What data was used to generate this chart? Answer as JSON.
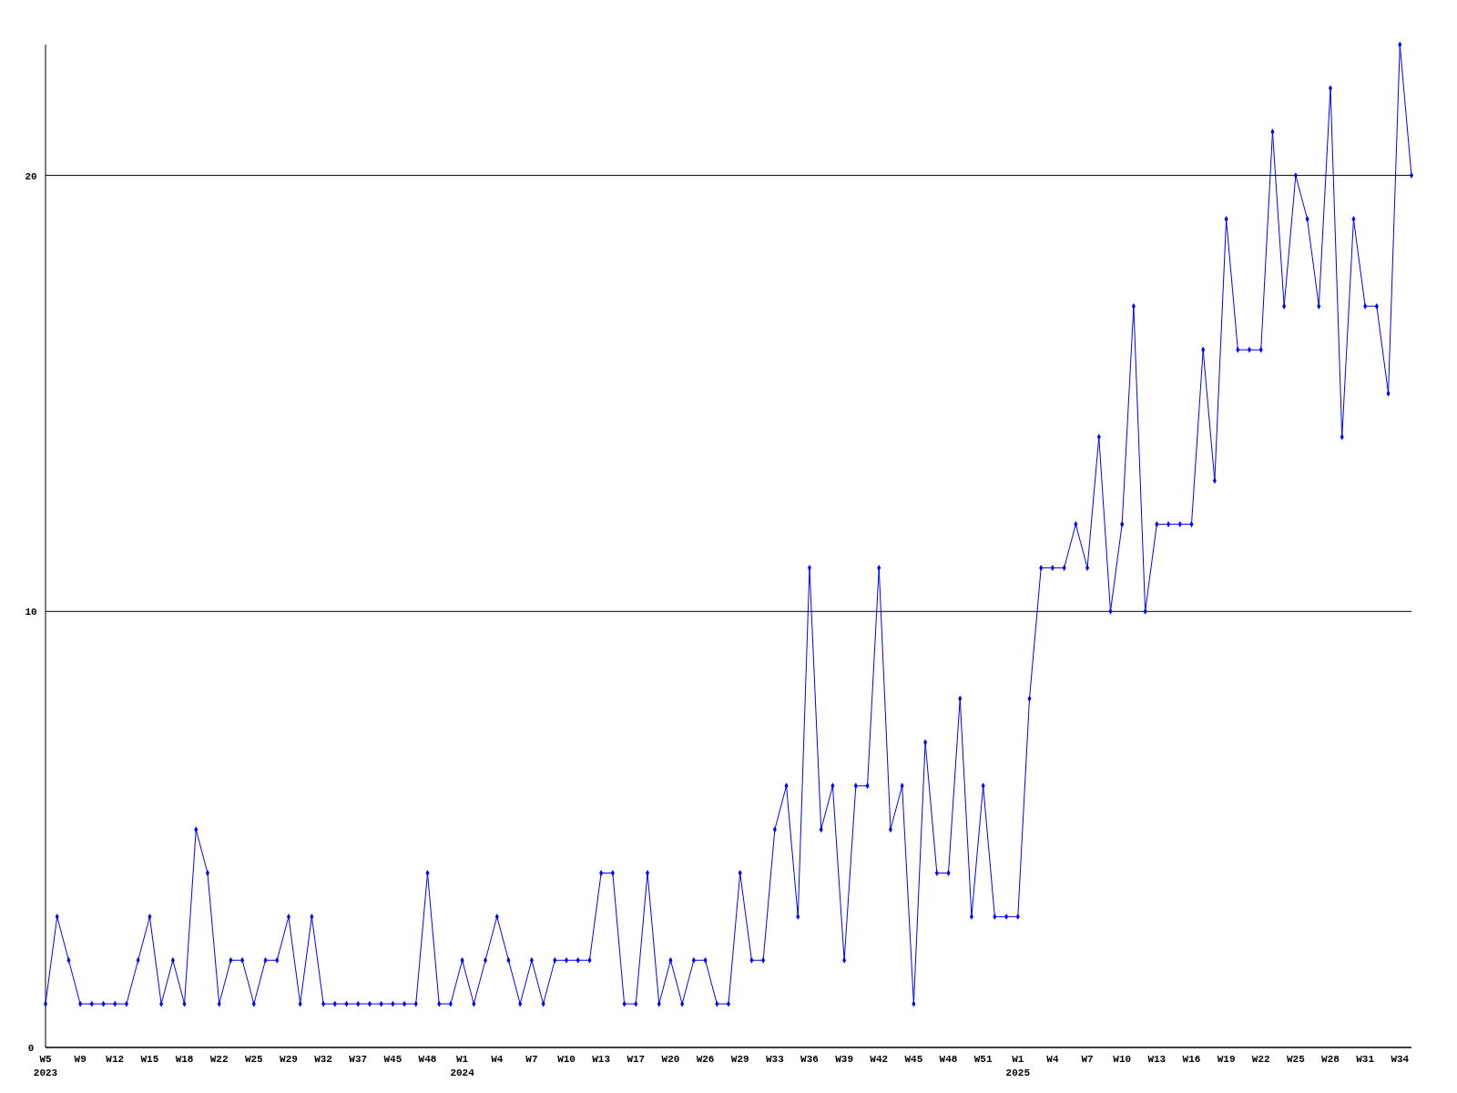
{
  "chart_data": {
    "type": "line",
    "categories": [
      "W5\n2023",
      null,
      null,
      "W9",
      null,
      null,
      "W12",
      null,
      null,
      "W15",
      null,
      null,
      "W18",
      null,
      null,
      "W22",
      null,
      null,
      "W25",
      null,
      null,
      "W29",
      null,
      null,
      "W32",
      null,
      null,
      "W37",
      null,
      null,
      "W45",
      null,
      null,
      "W48",
      null,
      null,
      "W1\n2024",
      null,
      null,
      "W4",
      null,
      null,
      "W7",
      null,
      null,
      "W10",
      null,
      null,
      "W13",
      null,
      null,
      "W17",
      null,
      null,
      "W20",
      null,
      null,
      "W26",
      null,
      null,
      "W29",
      null,
      null,
      "W33",
      null,
      null,
      "W36",
      null,
      null,
      "W39",
      null,
      null,
      "W42",
      null,
      null,
      "W45",
      null,
      null,
      "W48",
      null,
      null,
      "W51",
      null,
      null,
      "W1\n2025",
      null,
      null,
      "W4",
      null,
      null,
      "W7",
      null,
      null,
      "W10",
      null,
      null,
      "W13",
      null,
      null,
      "W16",
      null,
      null,
      "W19",
      null,
      null,
      "W22",
      null,
      null,
      "W25",
      null,
      null,
      "W28",
      null,
      null,
      "W31",
      null,
      null,
      "W34",
      null
    ],
    "series": [
      {
        "color": "#0000ff",
        "values": [
          1,
          3,
          2,
          1,
          1,
          1,
          1,
          1,
          2,
          3,
          1,
          2,
          1,
          5,
          4,
          1,
          2,
          2,
          1,
          2,
          2,
          3,
          1,
          3,
          1,
          1,
          1,
          1,
          1,
          1,
          1,
          1,
          1,
          4,
          1,
          1,
          2,
          1,
          2,
          3,
          2,
          1,
          2,
          1,
          2,
          2,
          2,
          2,
          4,
          4,
          1,
          1,
          4,
          1,
          2,
          1,
          2,
          2,
          1,
          1,
          4,
          2,
          2,
          5,
          6,
          3,
          11,
          5,
          6,
          2,
          6,
          6,
          11,
          5,
          6,
          1,
          7,
          4,
          4,
          8,
          3,
          6,
          3,
          3,
          3,
          8,
          11,
          11,
          11,
          12,
          11,
          14,
          10,
          12,
          17,
          10,
          12,
          12,
          12,
          12,
          16,
          13,
          19,
          16,
          16,
          16,
          21,
          17,
          20,
          19,
          17,
          22,
          14,
          19,
          17,
          17,
          15,
          23,
          20
        ]
      }
    ],
    "ylim": [
      0,
      23
    ],
    "yticks": [
      0,
      10,
      20
    ],
    "grid": "y",
    "marker": "diamond",
    "line_style": "solid"
  }
}
